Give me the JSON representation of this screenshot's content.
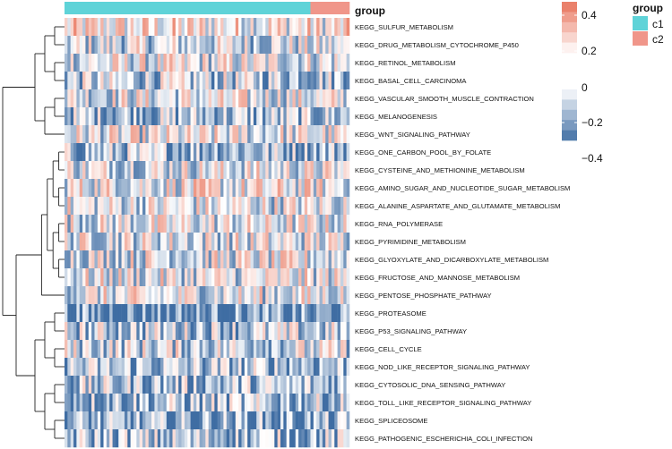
{
  "chart_data": {
    "type": "heatmap",
    "title": "",
    "annotation_title": "group",
    "groups": [
      {
        "name": "c1",
        "count": 82,
        "color": "#5fd3d8"
      },
      {
        "name": "c2",
        "count": 13,
        "color": "#f0968a"
      }
    ],
    "rows": [
      "KEGG_SULFUR_METABOLISM",
      "KEGG_DRUG_METABOLISM_CYTOCHROME_P450",
      "KEGG_RETINOL_METABOLISM",
      "KEGG_BASAL_CELL_CARCINOMA",
      "KEGG_VASCULAR_SMOOTH_MUSCLE_CONTRACTION",
      "KEGG_MELANOGENESIS",
      "KEGG_WNT_SIGNALING_PATHWAY",
      "KEGG_ONE_CARBON_POOL_BY_FOLATE",
      "KEGG_CYSTEINE_AND_METHIONINE_METABOLISM",
      "KEGG_AMINO_SUGAR_AND_NUCLEOTIDE_SUGAR_METABOLISM",
      "KEGG_ALANINE_ASPARTATE_AND_GLUTAMATE_METABOLISM",
      "KEGG_RNA_POLYMERASE",
      "KEGG_PYRIMIDINE_METABOLISM",
      "KEGG_GLYOXYLATE_AND_DICARBOXYLATE_METABOLISM",
      "KEGG_FRUCTOSE_AND_MANNOSE_METABOLISM",
      "KEGG_PENTOSE_PHOSPHATE_PATHWAY",
      "KEGG_PROTEASOME",
      "KEGG_P53_SIGNALING_PATHWAY",
      "KEGG_CELL_CYCLE",
      "KEGG_NOD_LIKE_RECEPTOR_SIGNALING_PATHWAY",
      "KEGG_CYTOSOLIC_DNA_SENSING_PATHWAY",
      "KEGG_TOLL_LIKE_RECEPTOR_SIGNALING_PATHWAY",
      "KEGG_SPLICEOSOME",
      "KEGG_PATHOGENIC_ESCHERICHIA_COLI_INFECTION"
    ],
    "row_bias": [
      0.05,
      -0.1,
      -0.05,
      -0.15,
      -0.05,
      -0.2,
      -0.05,
      -0.2,
      -0.05,
      0.0,
      -0.05,
      -0.05,
      -0.05,
      -0.05,
      -0.05,
      -0.05,
      -0.4,
      -0.15,
      -0.1,
      -0.2,
      -0.2,
      -0.2,
      -0.3,
      -0.2
    ],
    "value_range": [
      -0.5,
      0.5
    ],
    "color_scale": {
      "negative": "#3f6da3",
      "zero": "#ffffff",
      "positive": "#e8735a"
    },
    "legend_ticks": [
      {
        "label": "0.4",
        "value": 0.4
      },
      {
        "label": "0.2",
        "value": 0.2
      },
      {
        "label": "0",
        "value": 0.0
      },
      {
        "label": "−0.2",
        "value": -0.2
      },
      {
        "label": "−0.4",
        "value": -0.4
      }
    ],
    "legend_pos_swatches": [
      0.45,
      0.35,
      0.25,
      0.15,
      0.05
    ],
    "legend_neg_swatches": [
      -0.05,
      -0.15,
      -0.25,
      -0.35,
      -0.45
    ],
    "dendrogram": {
      "clusters": [
        {
          "members": [
            0,
            1,
            2,
            3,
            4,
            5,
            6
          ]
        },
        {
          "members": [
            7,
            8,
            9,
            10,
            11,
            12,
            13,
            14,
            15
          ]
        },
        {
          "members": [
            16,
            17,
            18,
            19,
            20,
            21,
            22,
            23
          ]
        }
      ]
    }
  }
}
